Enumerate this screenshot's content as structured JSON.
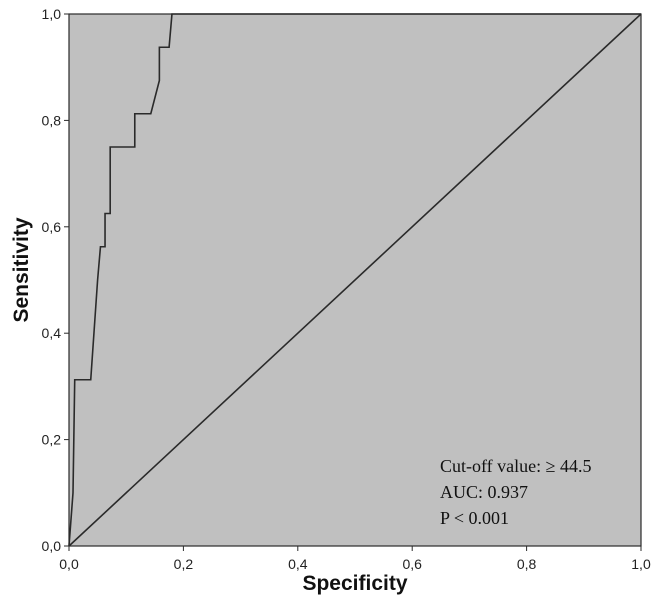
{
  "chart_data": {
    "type": "line",
    "xlabel": "Specificity",
    "ylabel": "Sensitivity",
    "xlim": [
      0,
      1
    ],
    "ylim": [
      0,
      1
    ],
    "x_ticks": [
      "0,0",
      "0,2",
      "0,4",
      "0,6",
      "0,8",
      "1,0"
    ],
    "y_ticks": [
      "0,0",
      "0,2",
      "0,4",
      "0,6",
      "0,8",
      "1,0"
    ],
    "x_tick_values": [
      0,
      0.2,
      0.4,
      0.6,
      0.8,
      1.0
    ],
    "y_tick_values": [
      0,
      0.2,
      0.4,
      0.6,
      0.8,
      1.0
    ],
    "grid": false,
    "series": [
      {
        "values": [
          [
            0.0,
            0.0
          ],
          [
            0.007,
            0.1
          ],
          [
            0.01,
            0.3125
          ],
          [
            0.038,
            0.3125
          ],
          [
            0.05,
            0.5
          ],
          [
            0.055,
            0.5625
          ],
          [
            0.063,
            0.5625
          ],
          [
            0.063,
            0.625
          ],
          [
            0.072,
            0.625
          ],
          [
            0.072,
            0.75
          ],
          [
            0.115,
            0.75
          ],
          [
            0.115,
            0.8125
          ],
          [
            0.143,
            0.8125
          ],
          [
            0.158,
            0.875
          ],
          [
            0.158,
            0.9375
          ],
          [
            0.175,
            0.9375
          ],
          [
            0.18,
            1.0
          ],
          [
            1.0,
            1.0
          ]
        ]
      },
      {
        "values": [
          [
            0.0,
            0.0
          ],
          [
            1.0,
            1.0
          ]
        ]
      }
    ],
    "annotations": [
      "Cut-off value: ≥ 44.5",
      "AUC: 0.937",
      "P < 0.001"
    ],
    "colors": {
      "plot_background": "#c0c0c0",
      "line": "#2a2a2a",
      "frame": "#2a2a2a"
    }
  }
}
